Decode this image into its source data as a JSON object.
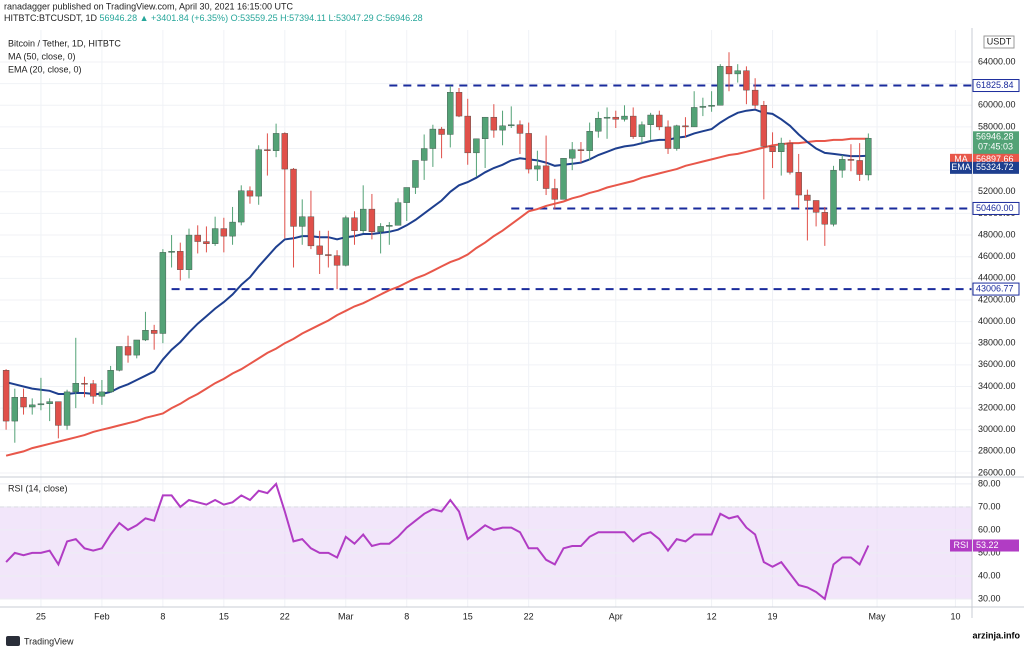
{
  "header": {
    "published": "ranadagger published on TradingView.com, April 30, 2021 16:15:00 UTC",
    "symbol": "HITBTC:BTCUSDT, 1D",
    "last": "56946.28",
    "change": "▲ +3401.84 (+6.35%)",
    "open": "O:53559.25",
    "high": "H:57394.11",
    "low": "L:53047.29",
    "close": "C:56946.28"
  },
  "watermark": "arzinja.info",
  "logo": "TradingView",
  "chart_data": [
    {
      "type": "candlestick",
      "title": "Bitcoin / Tether, 1D, HITBTC",
      "unit": "USDT",
      "countdown": "07:45:03",
      "up_color": "#53a276",
      "down_color": "#e0504a",
      "grid": true,
      "xlim": [
        -0.7,
        110.9
      ],
      "ylim": [
        25630,
        66960
      ],
      "xticks": [
        {
          "value": 4,
          "label": "25"
        },
        {
          "value": 11,
          "label": "Feb"
        },
        {
          "value": 18,
          "label": "8"
        },
        {
          "value": 25,
          "label": "15"
        },
        {
          "value": 32,
          "label": "22"
        },
        {
          "value": 39,
          "label": "Mar"
        },
        {
          "value": 46,
          "label": "8"
        },
        {
          "value": 53,
          "label": "15"
        },
        {
          "value": 60,
          "label": "22"
        },
        {
          "value": 70,
          "label": "Apr"
        },
        {
          "value": 81,
          "label": "12"
        },
        {
          "value": 88,
          "label": "19"
        },
        {
          "value": 100,
          "label": "May"
        },
        {
          "value": 109,
          "label": "10"
        }
      ],
      "yticks": [
        {
          "value": 26000,
          "label": "26000.00"
        },
        {
          "value": 28000,
          "label": "28000.00"
        },
        {
          "value": 30000,
          "label": "30000.00"
        },
        {
          "value": 32000,
          "label": "32000.00"
        },
        {
          "value": 34000,
          "label": "34000.00"
        },
        {
          "value": 36000,
          "label": "36000.00"
        },
        {
          "value": 38000,
          "label": "38000.00"
        },
        {
          "value": 40000,
          "label": "40000.00"
        },
        {
          "value": 42000,
          "label": "42000.00"
        },
        {
          "value": 44000,
          "label": "44000.00"
        },
        {
          "value": 46000,
          "label": "46000.00"
        },
        {
          "value": 48000,
          "label": "48000.00"
        },
        {
          "value": 50000,
          "label": "50000.00"
        },
        {
          "value": 52000,
          "label": "52000.00"
        },
        {
          "value": 54000,
          "label": "54000.00"
        },
        {
          "value": 56000,
          "label": "56000.00"
        },
        {
          "value": 58000,
          "label": "58000.00"
        },
        {
          "value": 60000,
          "label": "60000.00"
        },
        {
          "value": 62000,
          "label": "62000.00"
        },
        {
          "value": 64000,
          "label": "64000.00"
        }
      ],
      "levels": [
        {
          "value": 61825.84,
          "label": "61825.84",
          "start": 44
        },
        {
          "value": 50460.0,
          "label": "50460.00",
          "start": 58
        },
        {
          "value": 43006.77,
          "label": "43006.77",
          "start": 19
        }
      ],
      "level_color": "#1a2b9c",
      "ohlc": [
        [
          35500,
          35600,
          30000,
          30800
        ],
        [
          30800,
          33800,
          28800,
          33000
        ],
        [
          33000,
          33800,
          31400,
          32100
        ],
        [
          32100,
          32900,
          31400,
          32300
        ],
        [
          32300,
          34800,
          31800,
          32400
        ],
        [
          32400,
          32900,
          30800,
          32600
        ],
        [
          32600,
          32600,
          29200,
          30400
        ],
        [
          30400,
          33700,
          30000,
          33500
        ],
        [
          33500,
          38500,
          32000,
          34300
        ],
        [
          34300,
          34900,
          33000,
          34250
        ],
        [
          34250,
          34600,
          32400,
          33100
        ],
        [
          33100,
          34600,
          32300,
          33500
        ],
        [
          33500,
          35900,
          33400,
          35500
        ],
        [
          35500,
          37700,
          35400,
          37700
        ],
        [
          37700,
          38700,
          36200,
          36900
        ],
        [
          36900,
          38300,
          36600,
          38300
        ],
        [
          38300,
          40900,
          38200,
          39200
        ],
        [
          39200,
          39700,
          37400,
          38900
        ],
        [
          38900,
          46700,
          38000,
          46400
        ],
        [
          46400,
          48000,
          45000,
          46500
        ],
        [
          46500,
          47300,
          43800,
          44800
        ],
        [
          44800,
          48600,
          44000,
          48000
        ],
        [
          48000,
          48900,
          46300,
          47400
        ],
        [
          47400,
          48800,
          46400,
          47200
        ],
        [
          47200,
          49700,
          47000,
          48600
        ],
        [
          48600,
          49600,
          46400,
          47900
        ],
        [
          47900,
          50600,
          47100,
          49200
        ],
        [
          49200,
          52600,
          48900,
          52100
        ],
        [
          52100,
          52500,
          50900,
          51600
        ],
        [
          51600,
          56300,
          50800,
          55900
        ],
        [
          55900,
          57400,
          53500,
          55800
        ],
        [
          55800,
          58300,
          55200,
          57400
        ],
        [
          57400,
          57500,
          47700,
          54100
        ],
        [
          54100,
          54200,
          45000,
          48800
        ],
        [
          48800,
          51300,
          47100,
          49700
        ],
        [
          49700,
          52100,
          46700,
          47000
        ],
        [
          47000,
          48400,
          44400,
          46200
        ],
        [
          46200,
          48400,
          45000,
          46100
        ],
        [
          46100,
          46600,
          43000,
          45200
        ],
        [
          45200,
          49800,
          45100,
          49600
        ],
        [
          49600,
          50200,
          47100,
          48400
        ],
        [
          48400,
          52600,
          48200,
          50400
        ],
        [
          50400,
          51800,
          47600,
          48300
        ],
        [
          48300,
          49100,
          46300,
          48800
        ],
        [
          48800,
          49200,
          47100,
          48900
        ],
        [
          48900,
          51400,
          48900,
          51000
        ],
        [
          51000,
          52400,
          49300,
          52400
        ],
        [
          52400,
          54900,
          51800,
          54900
        ],
        [
          54900,
          57300,
          53100,
          56000
        ],
        [
          56000,
          58200,
          54300,
          57800
        ],
        [
          57800,
          58000,
          55100,
          57300
        ],
        [
          57300,
          61800,
          56100,
          61200
        ],
        [
          61200,
          61600,
          58900,
          59000
        ],
        [
          59000,
          60600,
          54500,
          55600
        ],
        [
          55600,
          56900,
          53400,
          56900
        ],
        [
          56900,
          58900,
          54200,
          58900
        ],
        [
          58900,
          60100,
          57000,
          57700
        ],
        [
          57700,
          59500,
          56300,
          58100
        ],
        [
          58100,
          59900,
          57900,
          58200
        ],
        [
          58200,
          58600,
          55500,
          57400
        ],
        [
          57400,
          58400,
          53700,
          54100
        ],
        [
          54100,
          55800,
          53000,
          54400
        ],
        [
          54400,
          57200,
          51700,
          52300
        ],
        [
          52300,
          53200,
          50400,
          51300
        ],
        [
          51300,
          55100,
          51300,
          55100
        ],
        [
          55100,
          56600,
          54000,
          55900
        ],
        [
          55900,
          56600,
          54700,
          55800
        ],
        [
          55800,
          58400,
          54900,
          57600
        ],
        [
          57600,
          59400,
          57000,
          58800
        ],
        [
          58800,
          59800,
          56900,
          58900
        ],
        [
          58900,
          59500,
          57900,
          58700
        ],
        [
          58700,
          60000,
          58500,
          59000
        ],
        [
          59000,
          59800,
          56900,
          57100
        ],
        [
          57100,
          58500,
          56500,
          58200
        ],
        [
          58200,
          59300,
          56800,
          59100
        ],
        [
          59100,
          59500,
          57700,
          58000
        ],
        [
          58000,
          58600,
          55500,
          56000
        ],
        [
          56000,
          58200,
          55800,
          58100
        ],
        [
          58100,
          58900,
          57000,
          58000
        ],
        [
          58000,
          61300,
          58000,
          59800
        ],
        [
          59800,
          60700,
          59000,
          59900
        ],
        [
          59900,
          61300,
          59400,
          60000
        ],
        [
          60000,
          63800,
          60000,
          63600
        ],
        [
          63600,
          64900,
          61300,
          62900
        ],
        [
          62900,
          63800,
          62100,
          63200
        ],
        [
          63200,
          63600,
          60100,
          61400
        ],
        [
          61400,
          62500,
          59700,
          60000
        ],
        [
          60000,
          60400,
          51300,
          56200
        ],
        [
          56200,
          57500,
          54200,
          55700
        ],
        [
          55700,
          57000,
          53500,
          56500
        ],
        [
          56500,
          56800,
          53600,
          53800
        ],
        [
          53800,
          55500,
          50500,
          51700
        ],
        [
          51700,
          52200,
          47500,
          51200
        ],
        [
          51200,
          51200,
          48800,
          50100
        ],
        [
          50100,
          50600,
          47000,
          49000
        ],
        [
          49000,
          54400,
          48800,
          54000
        ],
        [
          54000,
          55400,
          53300,
          55000
        ],
        [
          55000,
          56400,
          53900,
          54900
        ],
        [
          54900,
          56500,
          53000,
          53600
        ],
        [
          53559.25,
          57394.11,
          53047.29,
          56946.28
        ]
      ],
      "series": [
        {
          "name": "MA",
          "legend": "MA (50, close, 0)",
          "color": "#e8574a",
          "values": [
            27600,
            27800,
            28000,
            28300,
            28500,
            28700,
            28900,
            29100,
            29300,
            29500,
            29800,
            30000,
            30200,
            30400,
            30600,
            30800,
            31100,
            31300,
            31500,
            32000,
            32400,
            32900,
            33300,
            33800,
            34300,
            34700,
            35200,
            35600,
            36100,
            36600,
            37100,
            37500,
            38000,
            38400,
            38900,
            39300,
            39700,
            40100,
            40600,
            41000,
            41400,
            41700,
            42100,
            42500,
            42900,
            43200,
            43600,
            44000,
            44300,
            44700,
            45100,
            45500,
            45800,
            46200,
            46800,
            47300,
            47900,
            48400,
            49000,
            49600,
            50200,
            50400,
            50700,
            50900,
            51100,
            51400,
            51600,
            51900,
            52100,
            52400,
            52600,
            52800,
            53000,
            53300,
            53500,
            53700,
            53900,
            54100,
            54400,
            54600,
            54800,
            55000,
            55200,
            55400,
            55500,
            55700,
            55900,
            56100,
            56300,
            56400,
            56500,
            56500,
            56600,
            56700,
            56700,
            56800,
            56800,
            56900,
            56900,
            56897.66
          ]
        },
        {
          "name": "EMA",
          "legend": "EMA (20, close, 0)",
          "color": "#1e3f8f",
          "values": [
            34400,
            34200,
            34000,
            33800,
            33700,
            33600,
            33300,
            33300,
            33400,
            33400,
            33300,
            33300,
            33500,
            33900,
            34200,
            34600,
            35000,
            35400,
            36500,
            37400,
            38100,
            39000,
            39800,
            40500,
            41200,
            41800,
            42500,
            43400,
            44100,
            45100,
            46000,
            46900,
            47600,
            47700,
            47900,
            47900,
            47800,
            47800,
            47600,
            47800,
            47900,
            48100,
            48100,
            48200,
            48300,
            48500,
            48900,
            49400,
            50000,
            50600,
            51200,
            52000,
            52600,
            52900,
            53300,
            53800,
            54200,
            54500,
            54900,
            55100,
            55000,
            54900,
            54700,
            54400,
            54500,
            54600,
            54700,
            55000,
            55400,
            55700,
            56000,
            56200,
            56300,
            56500,
            56700,
            56800,
            56800,
            57000,
            57100,
            57400,
            57600,
            57800,
            58400,
            58900,
            59300,
            59500,
            59600,
            59300,
            59200,
            58700,
            58100,
            57300,
            56600,
            56000,
            55600,
            55500,
            55400,
            55300,
            55300,
            55324.72
          ]
        }
      ]
    },
    {
      "type": "line",
      "title": "RSI (14, close)",
      "ylim": [
        26.5,
        83
      ],
      "band": [
        30,
        70
      ],
      "band_color": "#e9d5f7",
      "yticks": [
        {
          "value": 30,
          "label": "30.00"
        },
        {
          "value": 40,
          "label": "40.00"
        },
        {
          "value": 50,
          "label": "50.00"
        },
        {
          "value": 60,
          "label": "60.00"
        },
        {
          "value": 70,
          "label": "70.00"
        },
        {
          "value": 80,
          "label": "80.00"
        }
      ],
      "series": [
        {
          "name": "RSI",
          "color": "#b13cc4",
          "values": [
            46,
            50,
            49,
            50,
            50,
            51,
            45,
            55,
            56,
            52,
            51,
            52,
            58,
            63,
            60,
            62,
            65,
            64,
            75,
            75,
            70,
            73,
            72,
            71,
            73,
            71,
            72,
            75,
            73,
            77,
            76,
            80,
            68,
            55,
            56,
            52,
            50,
            50,
            48,
            57,
            54,
            58,
            53,
            54,
            54,
            57,
            61,
            64,
            67,
            69,
            68,
            73,
            68,
            56,
            59,
            62,
            60,
            61,
            61,
            59,
            52,
            52,
            47,
            45,
            52,
            53,
            53,
            57,
            59,
            59,
            59,
            59,
            55,
            58,
            59,
            56,
            51,
            56,
            55,
            58,
            58,
            58,
            67,
            65,
            66,
            61,
            58,
            46,
            44,
            46,
            41,
            36,
            35,
            33,
            30,
            45,
            48,
            48,
            45,
            53.22
          ]
        }
      ]
    }
  ]
}
